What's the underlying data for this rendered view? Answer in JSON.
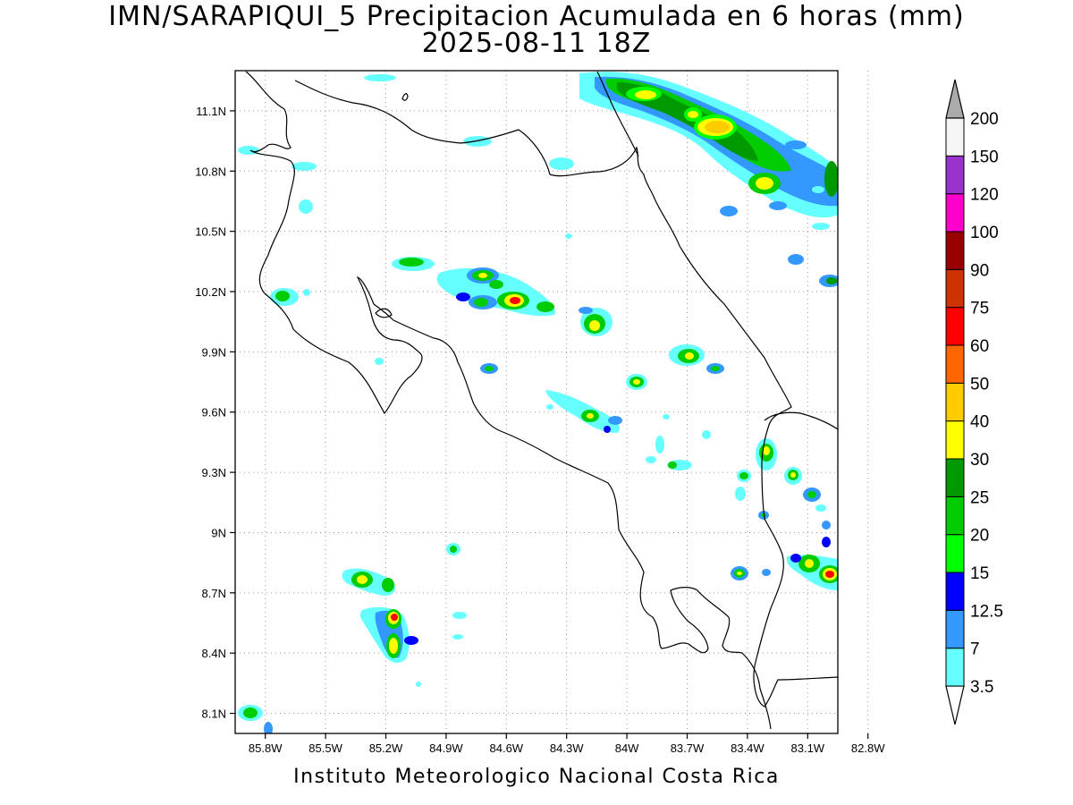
{
  "title": {
    "line1": "IMN/SARAPIQUI_5 Precipitacion Acumulada en 6 horas (mm)",
    "line2": "2025-08-11 18Z"
  },
  "footer": "Instituto Meteorologico Nacional Costa Rica",
  "map": {
    "lat_range": [
      8.0,
      11.3
    ],
    "lon_range": [
      -85.95,
      -82.95
    ],
    "lat_ticks": [
      {
        "value": 8.1,
        "label": "8.1N"
      },
      {
        "value": 8.4,
        "label": "8.4N"
      },
      {
        "value": 8.7,
        "label": "8.7N"
      },
      {
        "value": 9.0,
        "label": "9N"
      },
      {
        "value": 9.3,
        "label": "9.3N"
      },
      {
        "value": 9.6,
        "label": "9.6N"
      },
      {
        "value": 9.9,
        "label": "9.9N"
      },
      {
        "value": 10.2,
        "label": "10.2N"
      },
      {
        "value": 10.5,
        "label": "10.5N"
      },
      {
        "value": 10.8,
        "label": "10.8N"
      },
      {
        "value": 11.1,
        "label": "11.1N"
      }
    ],
    "lon_ticks": [
      {
        "value": -85.8,
        "label": "85.8W"
      },
      {
        "value": -85.5,
        "label": "85.5W"
      },
      {
        "value": -85.2,
        "label": "85.2W"
      },
      {
        "value": -84.9,
        "label": "84.9W"
      },
      {
        "value": -84.6,
        "label": "84.6W"
      },
      {
        "value": -84.3,
        "label": "84.3W"
      },
      {
        "value": -84.0,
        "label": "84W"
      },
      {
        "value": -83.7,
        "label": "83.7W"
      },
      {
        "value": -83.4,
        "label": "83.4W"
      },
      {
        "value": -83.1,
        "label": "83.1W"
      },
      {
        "value": -82.8,
        "label": "82.8W"
      }
    ],
    "grid": "dotted"
  },
  "colorbar": {
    "labels": [
      "3.5",
      "7",
      "12.5",
      "15",
      "20",
      "25",
      "30",
      "40",
      "50",
      "60",
      "75",
      "90",
      "100",
      "120",
      "150",
      "200"
    ],
    "colors": [
      "#66ffff",
      "#3399ff",
      "#0000ff",
      "#00ff00",
      "#00cc00",
      "#009900",
      "#ffff00",
      "#ffcc00",
      "#ff6600",
      "#ff0000",
      "#cc3300",
      "#990000",
      "#ff00cc",
      "#9933cc",
      "#f5f5f5",
      "#aaaaaa"
    ]
  }
}
